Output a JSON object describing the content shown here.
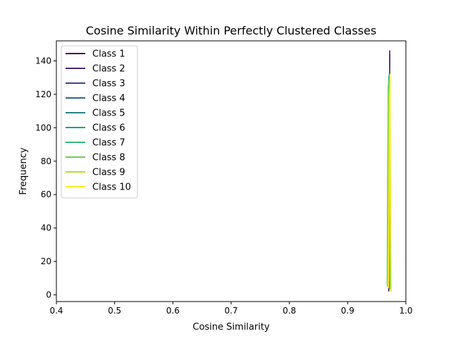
{
  "chart_data": {
    "type": "line",
    "title": "Cosine Similarity Within Perfectly Clustered Classes",
    "xlabel": "Cosine Similarity",
    "ylabel": "Frequency",
    "xlim": [
      0.4,
      1.0
    ],
    "ylim": [
      -4,
      152
    ],
    "xticks": [
      0.4,
      0.5,
      0.6,
      0.7,
      0.8,
      0.9,
      1.0
    ],
    "xtick_labels": [
      "0.4",
      "0.5",
      "0.6",
      "0.7",
      "0.8",
      "0.9",
      "1.0"
    ],
    "yticks": [
      0,
      20,
      40,
      60,
      80,
      100,
      120,
      140
    ],
    "ytick_labels": [
      "0",
      "20",
      "40",
      "60",
      "80",
      "100",
      "120",
      "140"
    ],
    "grid": false,
    "legend_position": "upper-left",
    "series": [
      {
        "name": "Class 1",
        "color": "#440154",
        "x": [
          0.9705,
          0.9712,
          0.9718,
          0.9722,
          0.9726,
          0.973
        ],
        "y": [
          2,
          40,
          110,
          146,
          90,
          8
        ]
      },
      {
        "name": "Class 2",
        "color": "#482878",
        "x": [
          0.9706,
          0.9713,
          0.9719,
          0.9723,
          0.9727,
          0.9731
        ],
        "y": [
          3,
          45,
          115,
          144,
          85,
          6
        ]
      },
      {
        "name": "Class 3",
        "color": "#3e4989",
        "x": [
          0.97,
          0.9708,
          0.9714,
          0.972,
          0.9726,
          0.9732
        ],
        "y": [
          4,
          50,
          118,
          138,
          80,
          5
        ]
      },
      {
        "name": "Class 4",
        "color": "#31688e",
        "x": [
          0.9698,
          0.9706,
          0.9713,
          0.9719,
          0.9725,
          0.9731
        ],
        "y": [
          5,
          55,
          120,
          135,
          75,
          6
        ]
      },
      {
        "name": "Class 5",
        "color": "#26828e",
        "x": [
          0.9694,
          0.9702,
          0.971,
          0.9717,
          0.9724,
          0.9731
        ],
        "y": [
          6,
          60,
          118,
          132,
          70,
          5
        ]
      },
      {
        "name": "Class 6",
        "color": "#1f9e89",
        "x": [
          0.9688,
          0.9697,
          0.9705,
          0.9712,
          0.972,
          0.9728
        ],
        "y": [
          6,
          65,
          120,
          130,
          68,
          4
        ]
      },
      {
        "name": "Class 7",
        "color": "#35b779",
        "x": [
          0.9682,
          0.9691,
          0.97,
          0.9708,
          0.9716,
          0.9724
        ],
        "y": [
          5,
          70,
          126,
          131,
          60,
          4
        ]
      },
      {
        "name": "Class 8",
        "color": "#6ece58",
        "x": [
          0.9678,
          0.9687,
          0.9696,
          0.9705,
          0.9714,
          0.9723
        ],
        "y": [
          6,
          75,
          124,
          128,
          55,
          3
        ]
      },
      {
        "name": "Class 9",
        "color": "#b5de2b",
        "x": [
          0.969,
          0.97,
          0.971,
          0.972,
          0.9732,
          0.9745
        ],
        "y": [
          5,
          60,
          118,
          124,
          50,
          2
        ]
      },
      {
        "name": "Class 10",
        "color": "#fde725",
        "x": [
          0.97,
          0.971,
          0.972,
          0.9728,
          0.9736,
          0.9748
        ],
        "y": [
          4,
          55,
          115,
          132,
          60,
          2
        ]
      }
    ]
  }
}
